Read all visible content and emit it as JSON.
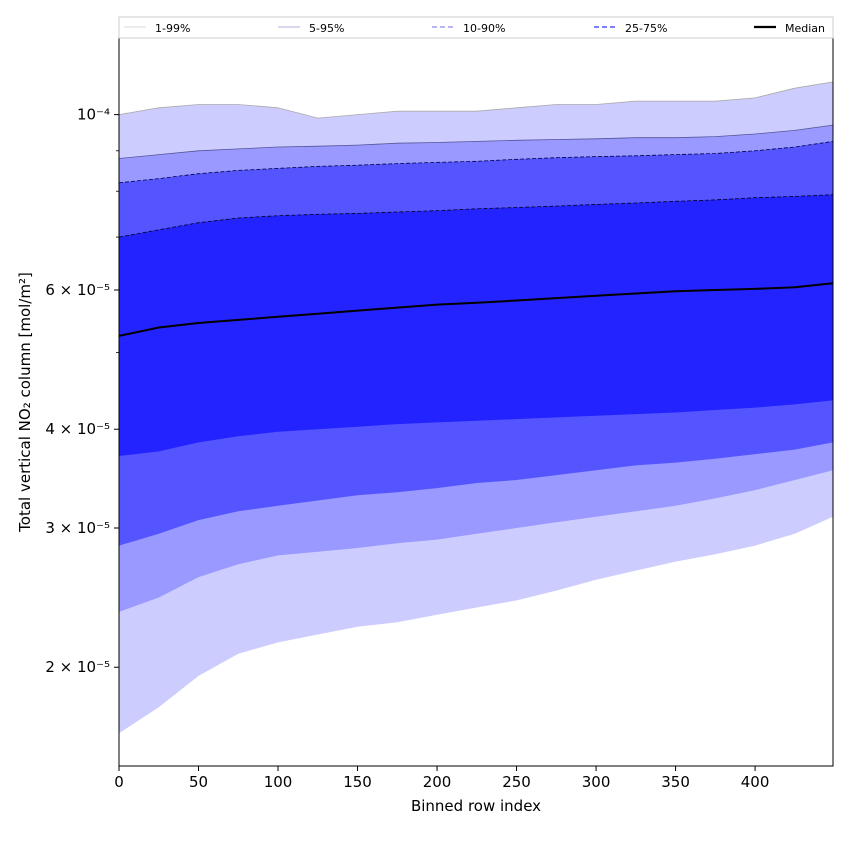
{
  "chart_data": {
    "type": "area",
    "xlabel": "Binned row index",
    "ylabel": "Total vertical NO₂ column [mol/m²]",
    "y_scale": "log",
    "xlim": [
      0,
      449
    ],
    "ylim": [
      1.5e-05,
      0.000125
    ],
    "x_ticks": [
      0,
      50,
      100,
      150,
      200,
      250,
      300,
      350,
      400
    ],
    "y_ticks": [
      {
        "value": 2e-05,
        "label": "2 × 10⁻⁵"
      },
      {
        "value": 3e-05,
        "label": "3 × 10⁻⁵"
      },
      {
        "value": 4e-05,
        "label": "4 × 10⁻⁵"
      },
      {
        "value": 6e-05,
        "label": "6 × 10⁻⁵"
      },
      {
        "value": 0.0001,
        "label": "10⁻⁴"
      }
    ],
    "grid": false,
    "legend_position": "top",
    "x": [
      0,
      25,
      50,
      75,
      100,
      125,
      150,
      175,
      200,
      225,
      250,
      275,
      300,
      325,
      350,
      375,
      400,
      425,
      449
    ],
    "bands": [
      {
        "name": "1-99%",
        "color": "#ccccff",
        "line_color": "#aaaaaa",
        "line_style": "solid",
        "lower": [
          1.65e-05,
          1.78e-05,
          1.95e-05,
          2.08e-05,
          2.15e-05,
          2.2e-05,
          2.25e-05,
          2.28e-05,
          2.33e-05,
          2.38e-05,
          2.43e-05,
          2.5e-05,
          2.58e-05,
          2.65e-05,
          2.72e-05,
          2.78e-05,
          2.85e-05,
          2.95e-05,
          3.1e-05
        ],
        "upper": [
          0.0001,
          0.000102,
          0.000103,
          0.000103,
          0.000102,
          9.9e-05,
          0.0001,
          0.000101,
          0.000101,
          0.000101,
          0.000102,
          0.000103,
          0.000103,
          0.000104,
          0.000104,
          0.000104,
          0.000105,
          0.000108,
          0.00011
        ]
      },
      {
        "name": "5-95%",
        "color": "#9999ff",
        "line_color": "#555599",
        "line_style": "solid",
        "lower": [
          2.35e-05,
          2.45e-05,
          2.6e-05,
          2.7e-05,
          2.77e-05,
          2.8e-05,
          2.83e-05,
          2.87e-05,
          2.9e-05,
          2.95e-05,
          3e-05,
          3.05e-05,
          3.1e-05,
          3.15e-05,
          3.2e-05,
          3.27e-05,
          3.35e-05,
          3.45e-05,
          3.55e-05
        ],
        "upper": [
          8.8e-05,
          8.9e-05,
          9e-05,
          9.05e-05,
          9.1e-05,
          9.12e-05,
          9.15e-05,
          9.2e-05,
          9.22e-05,
          9.25e-05,
          9.28e-05,
          9.3e-05,
          9.32e-05,
          9.35e-05,
          9.35e-05,
          9.38e-05,
          9.45e-05,
          9.55e-05,
          9.7e-05
        ]
      },
      {
        "name": "10-90%",
        "color": "#5555ff",
        "line_color": "#000044",
        "line_style": "dashed",
        "lower": [
          2.85e-05,
          2.95e-05,
          3.07e-05,
          3.15e-05,
          3.2e-05,
          3.25e-05,
          3.3e-05,
          3.33e-05,
          3.37e-05,
          3.42e-05,
          3.45e-05,
          3.5e-05,
          3.55e-05,
          3.6e-05,
          3.63e-05,
          3.67e-05,
          3.72e-05,
          3.77e-05,
          3.85e-05
        ],
        "upper": [
          8.2e-05,
          8.3e-05,
          8.42e-05,
          8.5e-05,
          8.55e-05,
          8.6e-05,
          8.63e-05,
          8.67e-05,
          8.7e-05,
          8.73e-05,
          8.78e-05,
          8.82e-05,
          8.85e-05,
          8.87e-05,
          8.9e-05,
          8.93e-05,
          9e-05,
          9.1e-05,
          9.25e-05
        ]
      },
      {
        "name": "25-75%",
        "color": "#2323ff",
        "line_color": "#000022",
        "line_style": "dashed",
        "lower": [
          3.7e-05,
          3.75e-05,
          3.85e-05,
          3.92e-05,
          3.97e-05,
          4e-05,
          4.03e-05,
          4.06e-05,
          4.08e-05,
          4.1e-05,
          4.12e-05,
          4.14e-05,
          4.16e-05,
          4.18e-05,
          4.2e-05,
          4.23e-05,
          4.26e-05,
          4.3e-05,
          4.35e-05
        ],
        "upper": [
          7e-05,
          7.15e-05,
          7.3e-05,
          7.4e-05,
          7.45e-05,
          7.48e-05,
          7.5e-05,
          7.53e-05,
          7.56e-05,
          7.6e-05,
          7.63e-05,
          7.66e-05,
          7.7e-05,
          7.73e-05,
          7.77e-05,
          7.8e-05,
          7.85e-05,
          7.88e-05,
          7.92e-05
        ]
      }
    ],
    "median": {
      "name": "Median",
      "color": "#000000",
      "values": [
        5.25e-05,
        5.38e-05,
        5.45e-05,
        5.5e-05,
        5.55e-05,
        5.6e-05,
        5.65e-05,
        5.7e-05,
        5.75e-05,
        5.78e-05,
        5.82e-05,
        5.86e-05,
        5.9e-05,
        5.94e-05,
        5.98e-05,
        6e-05,
        6.02e-05,
        6.05e-05,
        6.12e-05
      ]
    }
  },
  "legend": [
    {
      "label": "1-99%",
      "color": "#cccccc",
      "style": "solid",
      "width": 0.8
    },
    {
      "label": "5-95%",
      "color": "#9999cc",
      "style": "solid",
      "width": 0.8
    },
    {
      "label": "10-90%",
      "color": "#8a8af0",
      "style": "dashed",
      "width": 1.2
    },
    {
      "label": "25-75%",
      "color": "#5555ee",
      "style": "dashed",
      "width": 1.4
    },
    {
      "label": "Median",
      "color": "#000000",
      "style": "solid",
      "width": 2.2
    }
  ]
}
